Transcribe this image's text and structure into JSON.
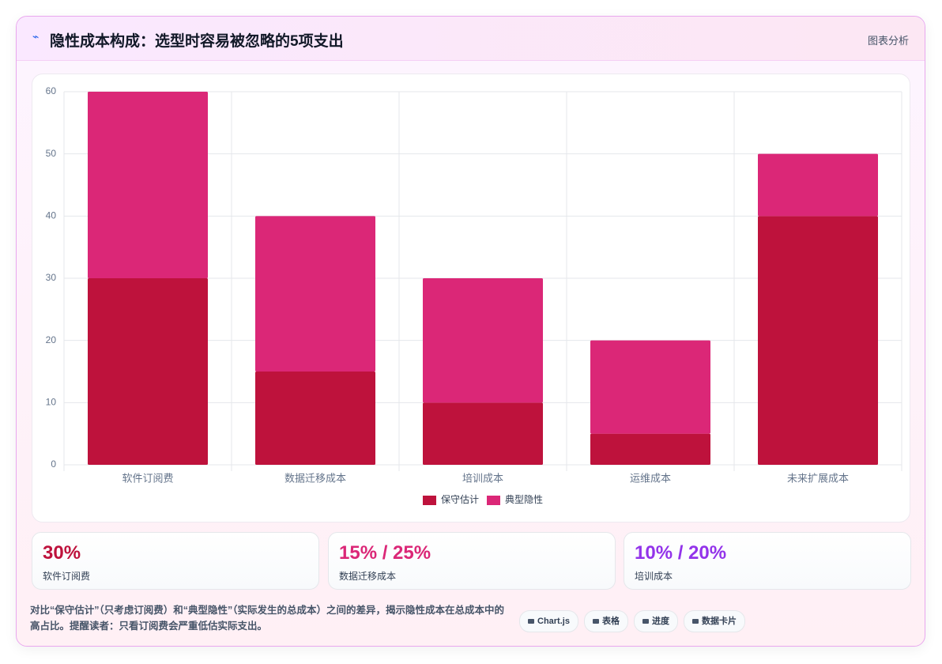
{
  "header": {
    "icon": "⌁",
    "title": "隐性成本构成：选型时容易被忽略的5项支出",
    "action": "图表分析"
  },
  "chart_data": {
    "type": "stacked_bar",
    "categories": [
      "软件订阅费",
      "数据迁移成本",
      "培训成本",
      "运维成本",
      "未来扩展成本"
    ],
    "series": [
      {
        "name": "保守估计",
        "color": "#be123c",
        "values": [
          30,
          15,
          10,
          5,
          40
        ]
      },
      {
        "name": "典型隐性",
        "color": "#db2777",
        "values": [
          30,
          25,
          20,
          15,
          10
        ]
      }
    ],
    "ylim": [
      0,
      60
    ],
    "yticks": [
      0,
      10,
      20,
      30,
      40,
      50,
      60
    ],
    "grid": true,
    "legend": "bottom"
  },
  "cards": [
    {
      "value": "30%",
      "label": "软件订阅费",
      "color": "#be123c"
    },
    {
      "value": "15% / 25%",
      "label": "数据迁移成本",
      "color": "#db2777"
    },
    {
      "value": "10% / 20%",
      "label": "培训成本",
      "color": "#9333ea"
    }
  ],
  "footer": {
    "text": "对比“保守估计”（只考虑订阅费）和“典型隐性”（实际发生的总成本）之间的差异，揭示隐性成本在总成本中的高占比。提醒读者：只看订阅费会严重低估实际支出。",
    "tags": [
      "Chart.js",
      "表格",
      "进度",
      "数据卡片"
    ]
  }
}
